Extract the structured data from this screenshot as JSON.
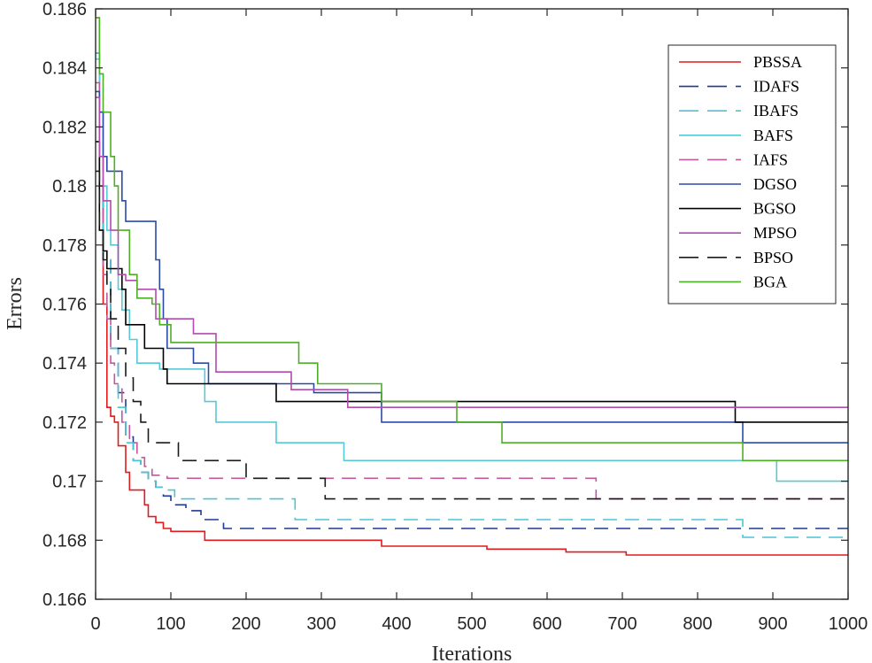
{
  "chart_data": {
    "type": "line",
    "title": "",
    "xlabel": "Iterations",
    "ylabel": "Errors",
    "xlim": [
      0,
      1000
    ],
    "ylim": [
      0.166,
      0.186
    ],
    "xticks": [
      0,
      100,
      200,
      300,
      400,
      500,
      600,
      700,
      800,
      900,
      1000
    ],
    "yticks": [
      0.166,
      0.168,
      0.17,
      0.172,
      0.174,
      0.176,
      0.178,
      0.18,
      0.182,
      0.184,
      0.186
    ],
    "xtick_labels": [
      "0",
      "100",
      "200",
      "300",
      "400",
      "500",
      "600",
      "700",
      "800",
      "900",
      "1000"
    ],
    "ytick_labels": [
      "0.166",
      "0.168",
      "0.17",
      "0.172",
      "0.174",
      "0.176",
      "0.178",
      "0.18",
      "0.182",
      "0.184",
      "0.186"
    ],
    "grid": false,
    "legend_position": "top-right",
    "series": [
      {
        "name": "PBSSA",
        "color": "#e31a1c",
        "dash": "solid",
        "x": [
          0,
          5,
          10,
          15,
          20,
          25,
          30,
          40,
          45,
          50,
          65,
          70,
          80,
          90,
          100,
          145,
          240,
          380,
          520,
          625,
          705,
          1000
        ],
        "y": [
          0.1857,
          0.18,
          0.176,
          0.1725,
          0.1722,
          0.172,
          0.1712,
          0.1703,
          0.1697,
          0.1697,
          0.1692,
          0.1688,
          0.1686,
          0.1684,
          0.1683,
          0.168,
          0.168,
          0.1678,
          0.1677,
          0.1676,
          0.1675,
          0.1675
        ]
      },
      {
        "name": "IDAFS",
        "color": "#1f3a93",
        "dash": "long",
        "x": [
          0,
          5,
          10,
          20,
          30,
          40,
          50,
          60,
          70,
          80,
          90,
          100,
          120,
          140,
          170,
          1000
        ],
        "y": [
          0.1845,
          0.181,
          0.1775,
          0.1745,
          0.173,
          0.1715,
          0.1707,
          0.1703,
          0.17,
          0.1698,
          0.1695,
          0.1692,
          0.169,
          0.1687,
          0.1684,
          0.1684
        ]
      },
      {
        "name": "IBAFS",
        "color": "#4dc3d6",
        "dash": "long",
        "x": [
          0,
          5,
          10,
          20,
          30,
          40,
          50,
          60,
          70,
          80,
          90,
          105,
          130,
          265,
          860,
          1000
        ],
        "y": [
          0.1845,
          0.181,
          0.1775,
          0.1745,
          0.1725,
          0.1713,
          0.1707,
          0.1703,
          0.17,
          0.1698,
          0.1697,
          0.1694,
          0.1694,
          0.1687,
          0.1681,
          0.1681
        ]
      },
      {
        "name": "BAFS",
        "color": "#56c8d6",
        "dash": "solid",
        "x": [
          0,
          5,
          10,
          15,
          20,
          30,
          35,
          45,
          55,
          65,
          75,
          85,
          145,
          160,
          240,
          330,
          905,
          1000
        ],
        "y": [
          0.1843,
          0.1825,
          0.18,
          0.1785,
          0.178,
          0.1765,
          0.1758,
          0.1748,
          0.174,
          0.174,
          0.174,
          0.1738,
          0.1727,
          0.172,
          0.1713,
          0.1707,
          0.17,
          0.17
        ]
      },
      {
        "name": "IAFS",
        "color": "#c1589c",
        "dash": "long",
        "x": [
          0,
          5,
          10,
          15,
          20,
          25,
          35,
          45,
          55,
          65,
          75,
          85,
          95,
          665,
          1000
        ],
        "y": [
          0.1835,
          0.18,
          0.177,
          0.1755,
          0.174,
          0.1733,
          0.172,
          0.1713,
          0.1708,
          0.1705,
          0.1702,
          0.1702,
          0.1701,
          0.1694,
          0.1694
        ]
      },
      {
        "name": "DGSO",
        "color": "#2b4aa6",
        "dash": "solid",
        "x": [
          0,
          5,
          10,
          15,
          20,
          35,
          40,
          55,
          65,
          80,
          85,
          90,
          95,
          130,
          150,
          240,
          290,
          380,
          480,
          860,
          1000
        ],
        "y": [
          0.1832,
          0.1825,
          0.181,
          0.1805,
          0.1805,
          0.1795,
          0.1788,
          0.1788,
          0.1788,
          0.1775,
          0.1765,
          0.1755,
          0.1745,
          0.174,
          0.1733,
          0.1733,
          0.173,
          0.172,
          0.172,
          0.1713,
          0.1713
        ]
      },
      {
        "name": "BGSO",
        "color": "#000000",
        "dash": "solid",
        "x": [
          0,
          5,
          10,
          15,
          35,
          40,
          55,
          65,
          80,
          90,
          95,
          240,
          480,
          850,
          1000
        ],
        "y": [
          0.1815,
          0.1785,
          0.1778,
          0.1772,
          0.1765,
          0.1753,
          0.1753,
          0.1745,
          0.1745,
          0.1738,
          0.1733,
          0.1727,
          0.1727,
          0.172,
          0.172
        ]
      },
      {
        "name": "MPSO",
        "color": "#b24bb0",
        "dash": "solid",
        "x": [
          0,
          5,
          10,
          20,
          30,
          40,
          55,
          80,
          90,
          130,
          160,
          260,
          300,
          335,
          400,
          1000
        ],
        "y": [
          0.183,
          0.181,
          0.1795,
          0.1785,
          0.177,
          0.1768,
          0.1765,
          0.1755,
          0.1755,
          0.175,
          0.1737,
          0.1731,
          0.1731,
          0.1725,
          0.1725,
          0.1725
        ]
      },
      {
        "name": "BPSO",
        "color": "#1a1a1a",
        "dash": "long",
        "x": [
          0,
          5,
          10,
          15,
          20,
          30,
          40,
          50,
          60,
          70,
          80,
          90,
          110,
          200,
          290,
          305,
          1000
        ],
        "y": [
          0.1805,
          0.1785,
          0.1775,
          0.1765,
          0.1755,
          0.1745,
          0.1735,
          0.1727,
          0.172,
          0.1713,
          0.1713,
          0.1713,
          0.1707,
          0.1701,
          0.1701,
          0.1694,
          0.1694
        ]
      },
      {
        "name": "BGA",
        "color": "#4caf24",
        "dash": "solid",
        "x": [
          0,
          5,
          10,
          20,
          25,
          30,
          45,
          55,
          75,
          85,
          100,
          270,
          295,
          380,
          480,
          540,
          860,
          1000
        ],
        "y": [
          0.1857,
          0.1838,
          0.1825,
          0.181,
          0.18,
          0.1785,
          0.177,
          0.1762,
          0.176,
          0.1753,
          0.1747,
          0.174,
          0.1733,
          0.1727,
          0.172,
          0.1713,
          0.1707,
          0.1707
        ]
      }
    ]
  }
}
